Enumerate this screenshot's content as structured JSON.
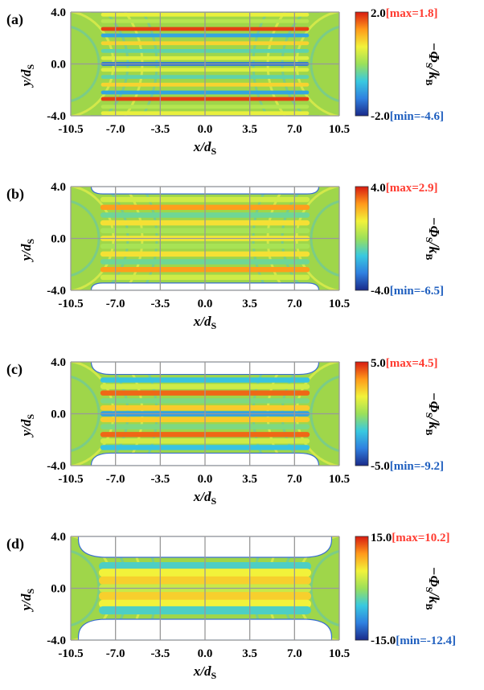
{
  "figure": {
    "x_axis": {
      "label_main": "x/d",
      "label_sub": "S",
      "ticks": [
        "-10.5",
        "-7.0",
        "-3.5",
        "0.0",
        "3.5",
        "7.0",
        "10.5"
      ]
    },
    "y_axis": {
      "label_main": "y/d",
      "label_sub": "S",
      "ticks": [
        "4.0",
        "0.0",
        "-4.0"
      ]
    },
    "colorbar_label": {
      "prefix": "−Φ",
      "sub1": "S",
      "mid": "/k",
      "sub2": "B"
    },
    "colors": {
      "max_text": "#ff3b30",
      "min_text": "#1f5fbf",
      "background_field": "#9fd64a",
      "colormap": [
        "#1a2a8a",
        "#2f80e0",
        "#39c9e0",
        "#9be05a",
        "#f2f23a",
        "#ff9a1a",
        "#d81a10"
      ]
    }
  },
  "chart_data": [
    {
      "type": "heatmap",
      "panel_label": "(a)",
      "x": [
        -10.5,
        -7.0,
        -3.5,
        0.0,
        3.5,
        7.0,
        10.5
      ],
      "y": [
        -4.0,
        0.0,
        4.0
      ],
      "xlim": [
        -10.5,
        10.5
      ],
      "ylim": [
        -4.0,
        4.0
      ],
      "colorbar": {
        "top": "2.0",
        "bottom": "-2.0",
        "max_label": "[max=1.8]",
        "min_label": "[min=-4.6]",
        "range": [
          -2.0,
          2.0
        ]
      },
      "stripes_y": [
        3.8,
        3.3,
        2.7,
        2.2,
        1.6,
        1.0,
        0.45,
        0.0,
        -0.45,
        -1.0,
        -1.6,
        -2.2,
        -2.7,
        -3.3,
        -3.8
      ],
      "stripes_value": [
        0.6,
        0.2,
        1.8,
        -1.0,
        0.9,
        -0.4,
        0.5,
        -1.4,
        0.5,
        -0.4,
        0.9,
        -1.0,
        1.8,
        0.2,
        0.6
      ]
    },
    {
      "type": "heatmap",
      "panel_label": "(b)",
      "x": [
        -10.5,
        -7.0,
        -3.5,
        0.0,
        3.5,
        7.0,
        10.5
      ],
      "y": [
        -4.0,
        0.0,
        4.0
      ],
      "xlim": [
        -10.5,
        10.5
      ],
      "ylim": [
        -4.0,
        4.0
      ],
      "colorbar": {
        "top": "4.0",
        "bottom": "-4.0",
        "max_label": "[max=2.9]",
        "min_label": "[min=-6.5]",
        "range": [
          -4.0,
          4.0
        ]
      },
      "stripes_y": [
        3.0,
        2.4,
        1.8,
        1.2,
        0.6,
        0.0,
        -0.6,
        -1.2,
        -1.8,
        -2.4,
        -3.0
      ],
      "stripes_value": [
        0.8,
        2.6,
        -0.6,
        1.6,
        0.2,
        1.5,
        0.2,
        1.6,
        -0.6,
        2.6,
        0.8
      ]
    },
    {
      "type": "heatmap",
      "panel_label": "(c)",
      "x": [
        -10.5,
        -7.0,
        -3.5,
        0.0,
        3.5,
        7.0,
        10.5
      ],
      "y": [
        -4.0,
        0.0,
        4.0
      ],
      "xlim": [
        -10.5,
        10.5
      ],
      "ylim": [
        -4.0,
        4.0
      ],
      "colorbar": {
        "top": "5.0",
        "bottom": "-5.0",
        "max_label": "[max=4.5]",
        "min_label": "[min=-9.2]",
        "range": [
          -5.0,
          5.0
        ]
      },
      "stripes_y": [
        2.6,
        2.1,
        1.6,
        1.0,
        0.45,
        0.0,
        -0.45,
        -1.0,
        -1.6,
        -2.1,
        -2.6
      ],
      "stripes_value": [
        -1.8,
        1.0,
        4.0,
        -0.5,
        2.4,
        -2.6,
        2.4,
        -0.5,
        4.0,
        1.0,
        -1.8
      ]
    },
    {
      "type": "heatmap",
      "panel_label": "(d)",
      "x": [
        -10.5,
        -7.0,
        -3.5,
        0.0,
        3.5,
        7.0,
        10.5
      ],
      "y": [
        -4.0,
        0.0,
        4.0
      ],
      "xlim": [
        -10.5,
        10.5
      ],
      "ylim": [
        -4.0,
        4.0
      ],
      "colorbar": {
        "top": "15.0",
        "bottom": "-15.0",
        "max_label": "[max=10.2]",
        "min_label": "[min=-12.4]",
        "range": [
          -15.0,
          15.0
        ]
      },
      "stripes_y": [
        1.7,
        1.2,
        0.6,
        0.0,
        -0.6,
        -1.2,
        -1.7
      ],
      "stripes_value": [
        -4.0,
        5.0,
        7.0,
        2.5,
        7.0,
        5.0,
        -4.0
      ]
    }
  ]
}
